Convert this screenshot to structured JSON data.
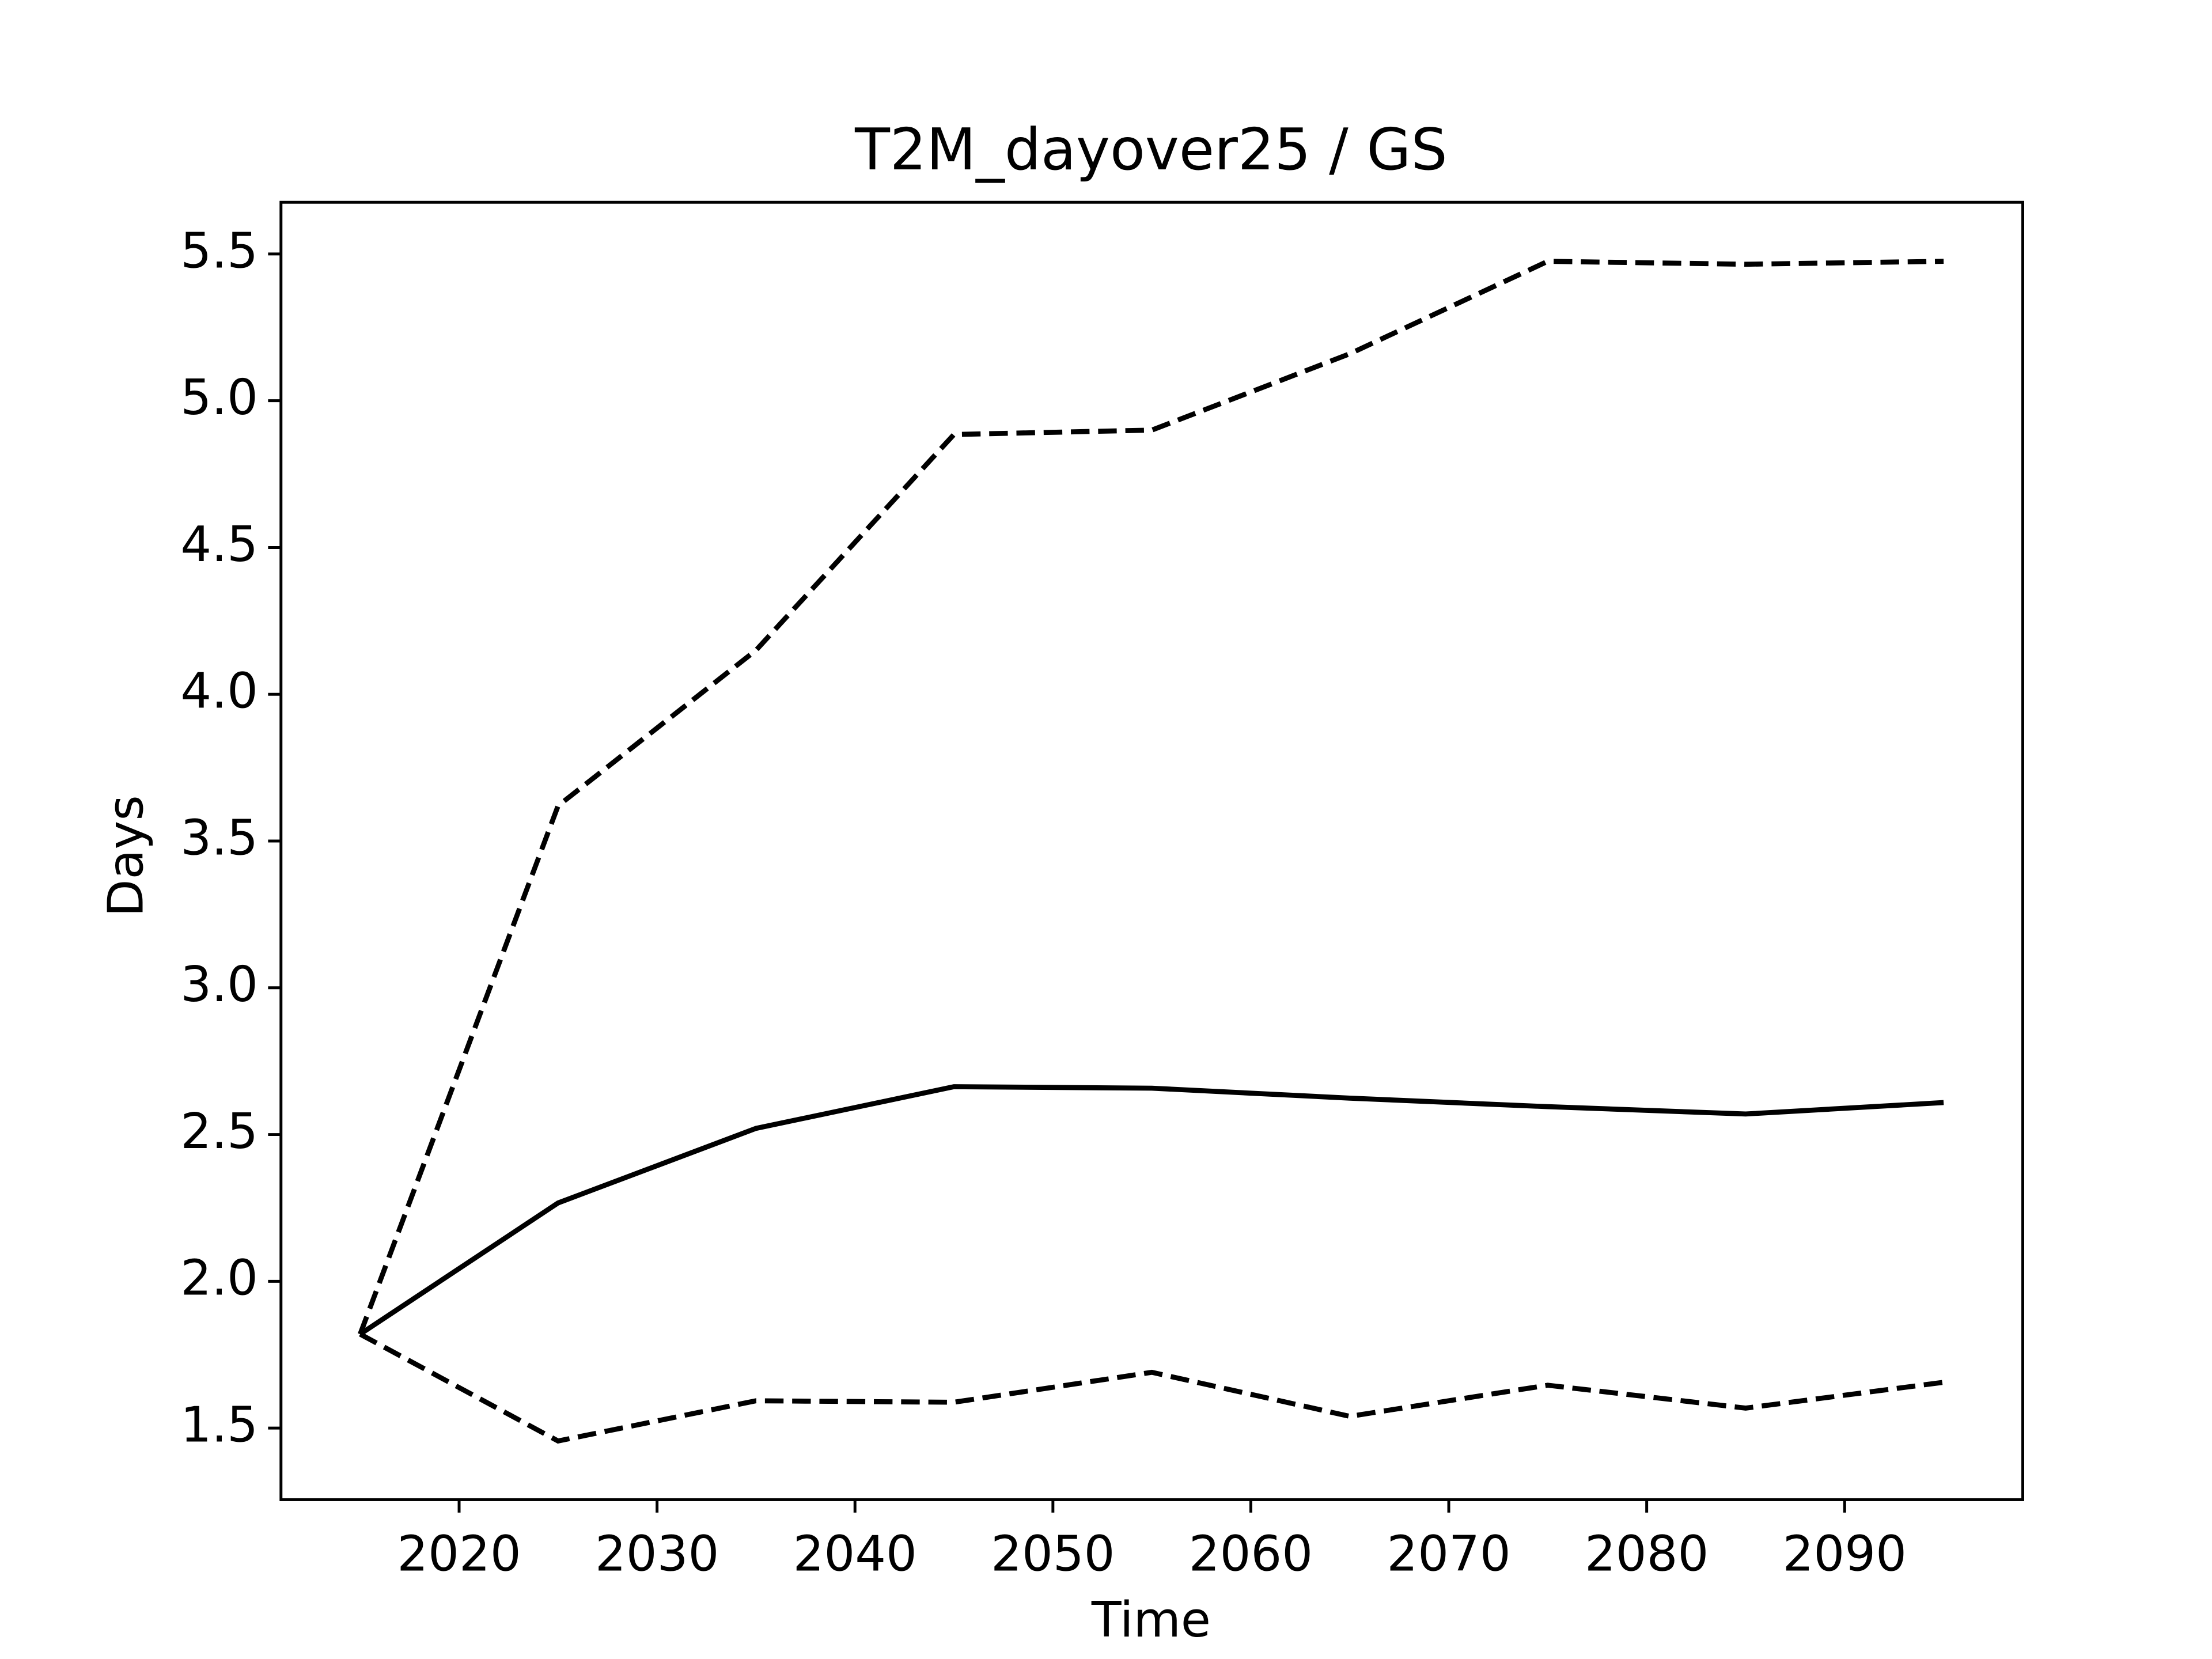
{
  "chart_data": {
    "type": "line",
    "title": "T2M_dayover25 / GS",
    "x_label": "Time",
    "y_label": "Days",
    "x": [
      2015,
      2025,
      2035,
      2045,
      2055,
      2065,
      2075,
      2085,
      2095
    ],
    "series": [
      {
        "color": "#000000",
        "dash": false,
        "values": [
          1.82,
          2.267,
          2.521,
          2.663,
          2.658,
          2.624,
          2.595,
          2.57,
          2.609
        ]
      },
      {
        "color": "#000000",
        "dash": true,
        "values": [
          1.82,
          3.62,
          4.15,
          4.885,
          4.9,
          5.16,
          5.475,
          5.465,
          5.475
        ]
      },
      {
        "color": "#000000",
        "dash": true,
        "values": [
          1.82,
          1.456,
          1.593,
          1.588,
          1.69,
          1.54,
          1.646,
          1.568,
          1.656
        ]
      }
    ],
    "xlim": [
      2011,
      2099
    ],
    "xticks": [
      2020,
      2030,
      2040,
      2050,
      2060,
      2070,
      2080,
      2090
    ],
    "ylim": [
      1.256,
      5.676
    ],
    "yticks": [
      {
        "value": 1.5,
        "label": "1.5"
      },
      {
        "value": 2,
        "label": "2.0"
      },
      {
        "value": 2.5,
        "label": "2.5"
      },
      {
        "value": 3,
        "label": "3.0"
      },
      {
        "value": 3.5,
        "label": "3.5"
      },
      {
        "value": 4,
        "label": "4.0"
      },
      {
        "value": 4.5,
        "label": "4.5"
      },
      {
        "value": 5,
        "label": "5.0"
      },
      {
        "value": 5.5,
        "label": "5.5"
      }
    ],
    "grid": false
  }
}
